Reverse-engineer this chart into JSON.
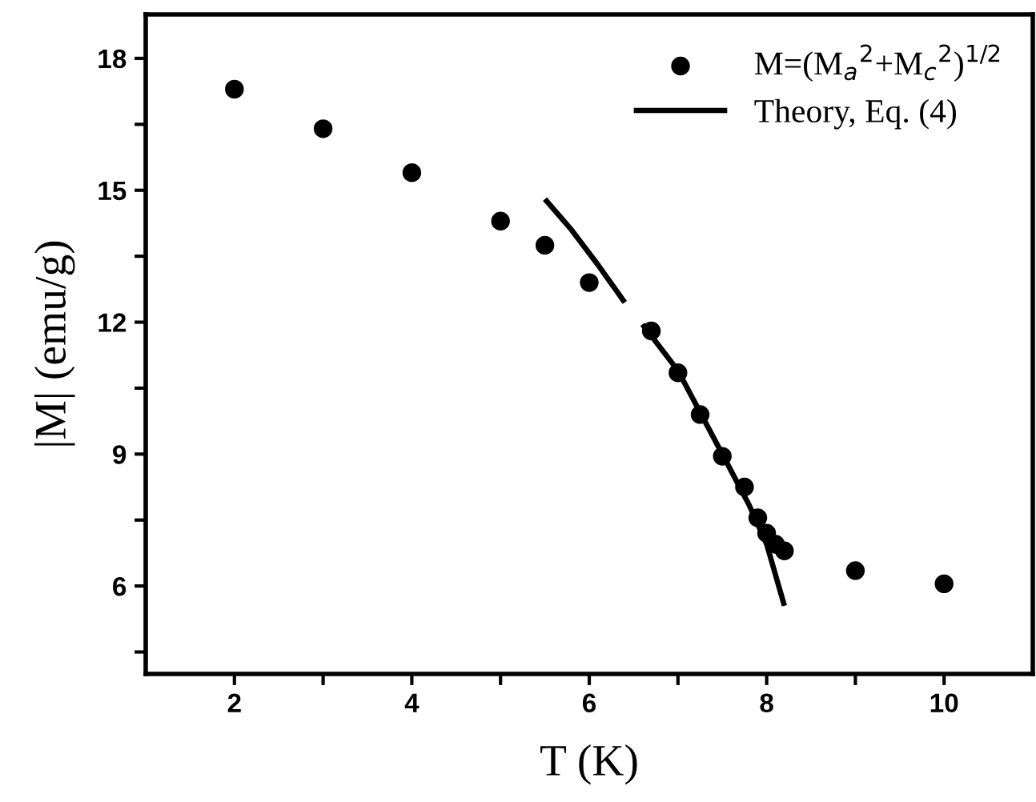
{
  "chart_data": {
    "type": "scatter",
    "xlabel": "T (K)",
    "ylabel": "|M| (emu/g)",
    "xlim": [
      1,
      11
    ],
    "ylim": [
      4,
      19
    ],
    "xticks": [
      2,
      {
        "value": 3,
        "label": null
      },
      4,
      {
        "value": 5,
        "label": null
      },
      6,
      {
        "value": 7,
        "label": null
      },
      8,
      {
        "value": 9,
        "label": null
      },
      10
    ],
    "yticks": [
      {
        "value": 4.5,
        "label": null
      },
      6,
      {
        "value": 7.5,
        "label": null
      },
      9,
      {
        "value": 10.5,
        "label": null
      },
      12,
      {
        "value": 13.5,
        "label": null
      },
      15,
      {
        "value": 16.5,
        "label": null
      },
      18
    ],
    "grid": false,
    "legend": "top right",
    "series": [
      {
        "name": "M=(M$_{a}$$^{2}$+M$_{c}$$^{2}$)$^{1/2}$",
        "marker": "circle",
        "color": "#000000",
        "x": [
          2,
          3,
          4,
          5,
          5.5,
          6,
          6.7,
          7,
          7.25,
          7.5,
          7.75,
          7.9,
          8.0,
          8.1,
          8.2,
          9,
          10
        ],
        "values": [
          17.3,
          16.4,
          15.4,
          14.3,
          13.75,
          12.9,
          11.8,
          10.85,
          9.9,
          8.95,
          8.25,
          7.55,
          7.2,
          6.95,
          6.8,
          6.35,
          6.05
        ]
      },
      {
        "name": "Theory, Eq. (4)",
        "type": "line",
        "line_style": "solid",
        "color": "#000000",
        "x": [
          5.5,
          5.8,
          6.1,
          6.4,
          6.5,
          6.6,
          7.0,
          7.5,
          7.8,
          8.0,
          8.2
        ],
        "values": [
          14.8,
          14.1,
          13.3,
          12.45,
          null,
          11.95,
          10.9,
          9.0,
          7.85,
          6.95,
          5.55
        ]
      }
    ]
  }
}
